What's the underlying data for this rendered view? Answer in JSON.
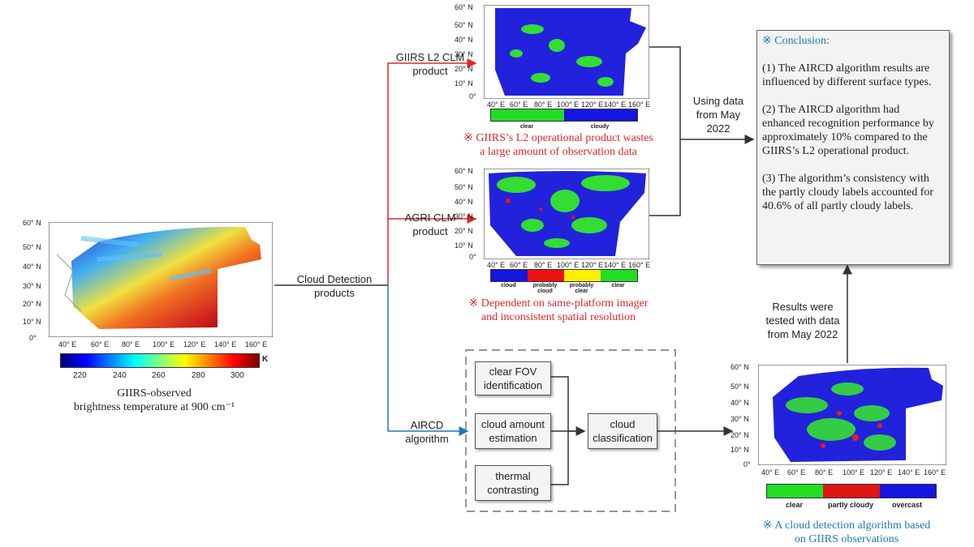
{
  "colors": {
    "red_arrow": "#e0262b",
    "blue_arrow": "#1f79b5",
    "clear": "#22dd22",
    "cloudy": "#1515e0",
    "probably_cloud": "#ee1111",
    "probably_clear": "#ffee00",
    "partly_cloudy": "#dd1515"
  },
  "left_map": {
    "lat_ticks": [
      "60° N",
      "50° N",
      "40° N",
      "30° N",
      "20° N",
      "10° N",
      "0°"
    ],
    "lon_ticks": [
      "40° E",
      "60° E",
      "80° E",
      "100° E",
      "120° E",
      "140° E",
      "160° E"
    ],
    "colorbar_ticks": [
      "220",
      "240",
      "260",
      "280",
      "300"
    ],
    "colorbar_unit": "K",
    "caption_line1": "GIIRS-observed",
    "caption_line2": "brightness temperature at 900 cm⁻¹"
  },
  "center_label_line1": "Cloud Detection",
  "center_label_line2": "products",
  "branches": {
    "giirs_line1": "GIIRS L2 CLM",
    "giirs_line2": "product",
    "agri_line1": "AGRI CLM",
    "agri_line2": "product",
    "airc_line1": "AIRCD",
    "airc_line2": "algorithm"
  },
  "giirs_map": {
    "lat_ticks": [
      "60° N",
      "50° N",
      "40° N",
      "30° N",
      "20° N",
      "10° N",
      "0°"
    ],
    "lon_ticks": [
      "40° E",
      "60° E",
      "80° E",
      "100° E",
      "120° E",
      "140° E",
      "160° E"
    ],
    "legend": [
      "clear",
      "cloudy"
    ],
    "note_line1": "※ GIIRS’s L2 operational product wastes",
    "note_line2": "a large amount of observation data"
  },
  "agri_map": {
    "lat_ticks": [
      "60° N",
      "50° N",
      "40° N",
      "30° N",
      "20° N",
      "10° N",
      "0°"
    ],
    "lon_ticks": [
      "40° E",
      "60° E",
      "80° E",
      "100° E",
      "120° E",
      "140° E",
      "160° E"
    ],
    "legend": [
      "cloud",
      "probably cloud",
      "probably clear",
      "clear"
    ],
    "note_line1": "※ Dependent on same-platform imager",
    "note_line2": "and inconsistent spatial resolution"
  },
  "algorithm": {
    "step1_line1": "clear FOV",
    "step1_line2": "identification",
    "step2_line1": "cloud amount",
    "step2_line2": "estimation",
    "step3_line1": "thermal",
    "step3_line2": "contrasting",
    "result_line1": "cloud",
    "result_line2": "classification"
  },
  "result_map": {
    "lat_ticks": [
      "60° N",
      "50° N",
      "40° N",
      "30° N",
      "20° N",
      "10° N",
      "0°"
    ],
    "lon_ticks": [
      "40° E",
      "60° E",
      "80° E",
      "100° E",
      "120° E",
      "140° E",
      "160° E"
    ],
    "legend": [
      "clear",
      "partly cloudy",
      "overcast"
    ],
    "note_line1": "※ A cloud detection algorithm based",
    "note_line2": "on GIIRS observations"
  },
  "using_data": [
    "Using data",
    "from May",
    "2022"
  ],
  "results_tested": [
    "Results were",
    "tested with data",
    "from May 2022"
  ],
  "conclusion": {
    "heading": "※ Conclusion:",
    "p1": "(1) The AIRCD algorithm results are influenced by different surface types.",
    "p2": "(2) The AIRCD algorithm had enhanced recognition performance by approximately 10% compared to the GIIRS’s L2 operational product.",
    "p3": "(3) The algorithm’s consistency with the partly cloudy labels accounted for 40.6% of all partly cloudy labels."
  }
}
